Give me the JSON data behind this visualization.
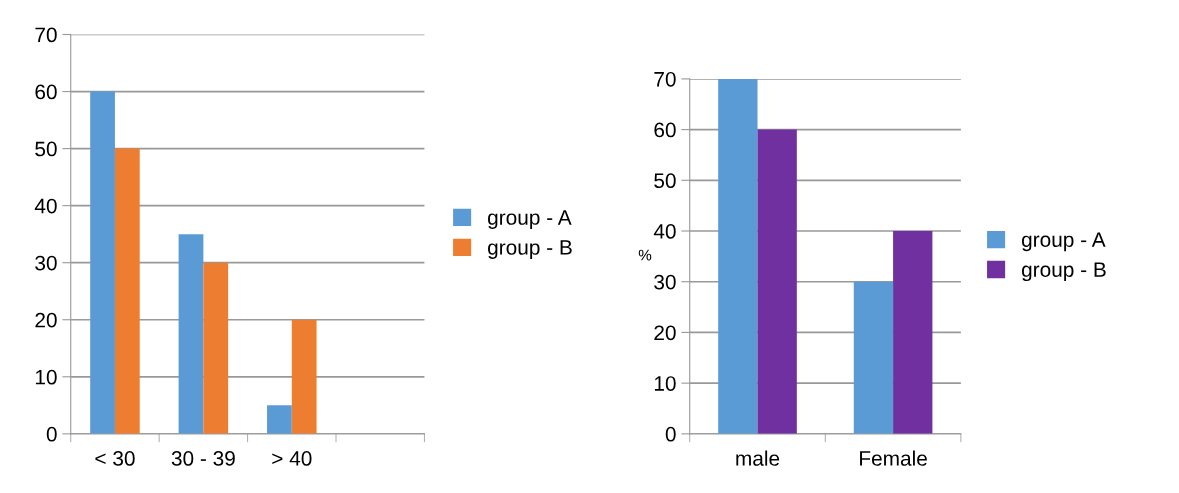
{
  "chart_data": [
    {
      "type": "bar",
      "categories": [
        "< 30",
        "30 - 39",
        "> 40",
        null
      ],
      "ylim": [
        0,
        70
      ],
      "yticks": [
        0,
        10,
        20,
        30,
        40,
        50,
        60,
        70
      ],
      "grid": "y",
      "legend": "right",
      "series": [
        {
          "name": "group - A",
          "color": "#5b9bd5",
          "values": [
            60,
            35,
            5,
            null
          ]
        },
        {
          "name": "group - B",
          "color": "#ed7d31",
          "values": [
            50,
            30,
            20,
            null
          ]
        }
      ]
    },
    {
      "type": "bar",
      "categories": [
        "male",
        "Female"
      ],
      "ylabel": "%",
      "ylim": [
        0,
        70
      ],
      "yticks": [
        0,
        10,
        20,
        30,
        40,
        50,
        60,
        70
      ],
      "grid": "y",
      "legend": "right",
      "series": [
        {
          "name": "group - A",
          "color": "#5b9bd5",
          "values": [
            70,
            30
          ]
        },
        {
          "name": "group - B",
          "color": "#7030a0",
          "values": [
            60,
            40
          ]
        }
      ]
    }
  ]
}
